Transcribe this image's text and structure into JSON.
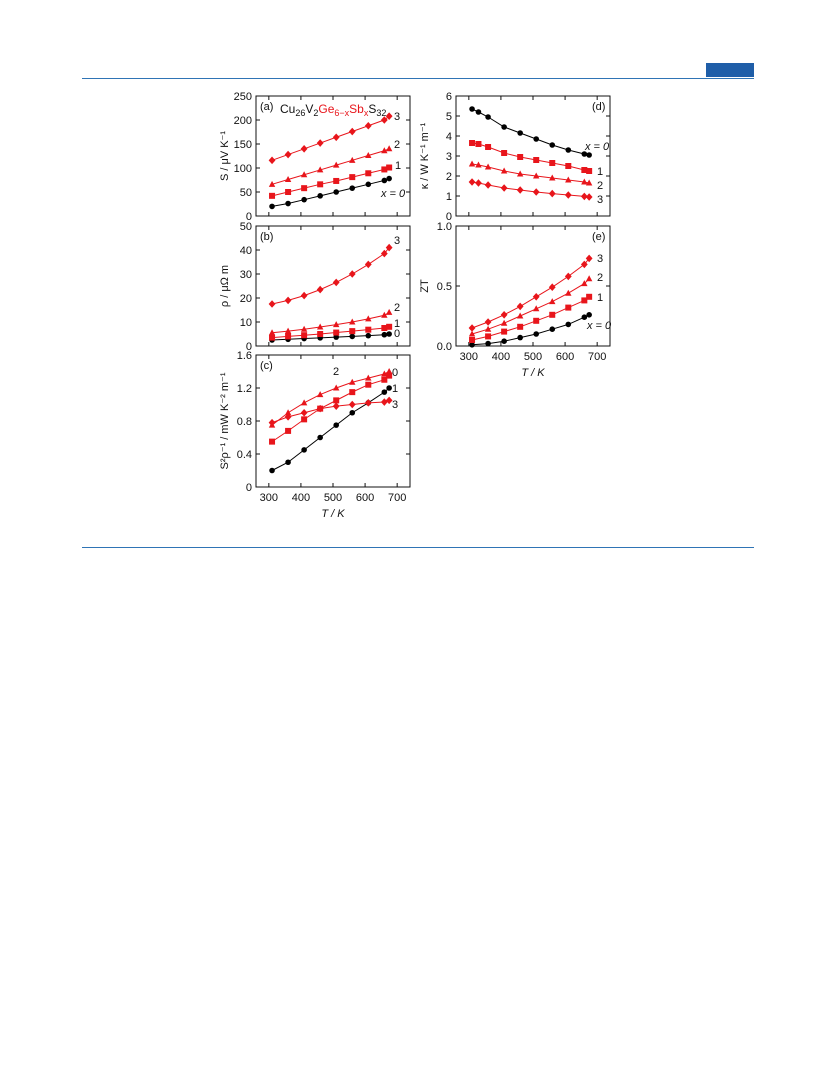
{
  "figure": {
    "compound_parts": {
      "cu": "Cu",
      "cu_sub": "26",
      "v": "V",
      "v_sub": "2",
      "ge": "Ge",
      "ge_sub": "6−x",
      "sb": "Sb",
      "sb_sub": "x",
      "s": "S",
      "s_sub": "32"
    },
    "colors": {
      "x0": "#000000",
      "doped": "#e8151b",
      "rule": "#2f74b5",
      "tab": "#1f5ea8"
    }
  },
  "chart_data": [
    {
      "type": "line",
      "panel": "(a)",
      "ylabel": "S / μV K⁻¹",
      "xlabel": "",
      "xlim": [
        260,
        740
      ],
      "ylim": [
        0,
        250
      ],
      "yticks": [
        0,
        50,
        100,
        150,
        200,
        250
      ],
      "xticks": [
        300,
        400,
        500,
        600,
        700
      ],
      "series": [
        {
          "name": "x = 0",
          "marker": "circle",
          "color": "#000000",
          "x": [
            310,
            360,
            410,
            460,
            510,
            560,
            610,
            660,
            675
          ],
          "y": [
            20,
            26,
            34,
            42,
            50,
            58,
            66,
            74,
            78
          ]
        },
        {
          "name": "1",
          "marker": "square",
          "color": "#e8151b",
          "x": [
            310,
            360,
            410,
            460,
            510,
            560,
            610,
            660,
            675
          ],
          "y": [
            42,
            50,
            58,
            66,
            73,
            81,
            89,
            97,
            101
          ]
        },
        {
          "name": "2",
          "marker": "triangle",
          "color": "#e8151b",
          "x": [
            310,
            360,
            410,
            460,
            510,
            560,
            610,
            660,
            675
          ],
          "y": [
            66,
            76,
            86,
            96,
            106,
            116,
            126,
            136,
            140
          ]
        },
        {
          "name": "3",
          "marker": "diamond",
          "color": "#e8151b",
          "x": [
            310,
            360,
            410,
            460,
            510,
            560,
            610,
            660,
            675
          ],
          "y": [
            116,
            128,
            140,
            152,
            164,
            176,
            188,
            200,
            208
          ]
        }
      ]
    },
    {
      "type": "line",
      "panel": "(b)",
      "ylabel": "ρ / μΩ m",
      "xlabel": "",
      "xlim": [
        260,
        740
      ],
      "ylim": [
        0,
        50
      ],
      "yticks": [
        0,
        10,
        20,
        30,
        40,
        50
      ],
      "xticks": [
        300,
        400,
        500,
        600,
        700
      ],
      "series": [
        {
          "name": "0",
          "marker": "circle",
          "color": "#000000",
          "x": [
            310,
            360,
            410,
            460,
            510,
            560,
            610,
            660,
            675
          ],
          "y": [
            2.5,
            2.8,
            3.1,
            3.4,
            3.7,
            4.0,
            4.3,
            4.7,
            5.0
          ]
        },
        {
          "name": "1",
          "marker": "square",
          "color": "#e8151b",
          "x": [
            310,
            360,
            410,
            460,
            510,
            560,
            610,
            660,
            675
          ],
          "y": [
            3.5,
            4.0,
            4.5,
            5.0,
            5.6,
            6.2,
            6.8,
            7.5,
            8.0
          ]
        },
        {
          "name": "2",
          "marker": "triangle",
          "color": "#e8151b",
          "x": [
            310,
            360,
            410,
            460,
            510,
            560,
            610,
            660,
            675
          ],
          "y": [
            5.5,
            6.2,
            7.0,
            7.9,
            8.9,
            10.0,
            11.3,
            12.8,
            14.0
          ]
        },
        {
          "name": "3",
          "marker": "diamond",
          "color": "#e8151b",
          "x": [
            310,
            360,
            410,
            460,
            510,
            560,
            610,
            660,
            675
          ],
          "y": [
            17.5,
            19.0,
            21.0,
            23.5,
            26.5,
            30.0,
            34.0,
            38.5,
            41.0
          ]
        }
      ]
    },
    {
      "type": "line",
      "panel": "(c)",
      "ylabel": "S²ρ⁻¹ / mW K⁻² m⁻¹",
      "xlabel": "T / K",
      "xlim": [
        260,
        740
      ],
      "ylim": [
        0,
        1.6
      ],
      "yticks": [
        0.0,
        0.4,
        0.8,
        1.2,
        1.6
      ],
      "ytick_labels": [
        "0",
        "0.4",
        "0.8",
        "1.2",
        "1.6"
      ],
      "xticks": [
        300,
        400,
        500,
        600,
        700
      ],
      "series": [
        {
          "name": "0",
          "marker": "circle",
          "color": "#000000",
          "x": [
            310,
            360,
            410,
            460,
            510,
            560,
            610,
            660,
            675
          ],
          "y": [
            0.2,
            0.3,
            0.45,
            0.6,
            0.75,
            0.9,
            1.02,
            1.15,
            1.2
          ]
        },
        {
          "name": "1",
          "marker": "square",
          "color": "#e8151b",
          "x": [
            310,
            360,
            410,
            460,
            510,
            560,
            610,
            660,
            675
          ],
          "y": [
            0.55,
            0.68,
            0.82,
            0.95,
            1.05,
            1.15,
            1.24,
            1.3,
            1.35
          ]
        },
        {
          "name": "2",
          "marker": "triangle",
          "color": "#e8151b",
          "x": [
            310,
            360,
            410,
            460,
            510,
            560,
            610,
            660,
            675
          ],
          "y": [
            0.75,
            0.9,
            1.02,
            1.12,
            1.2,
            1.27,
            1.32,
            1.37,
            1.4
          ]
        },
        {
          "name": "3",
          "marker": "diamond",
          "color": "#e8151b",
          "x": [
            310,
            360,
            410,
            460,
            510,
            560,
            610,
            660,
            675
          ],
          "y": [
            0.78,
            0.85,
            0.9,
            0.95,
            0.98,
            1.0,
            1.02,
            1.03,
            1.05
          ]
        }
      ],
      "series_labels": [
        "1",
        "0",
        "3",
        "2"
      ]
    },
    {
      "type": "line",
      "panel": "(d)",
      "ylabel": "κ / W K⁻¹ m⁻¹",
      "xlabel": "",
      "xlim": [
        260,
        740
      ],
      "ylim": [
        0,
        6
      ],
      "yticks": [
        0,
        1,
        2,
        3,
        4,
        5,
        6
      ],
      "xticks": [
        300,
        400,
        500,
        600,
        700
      ],
      "series": [
        {
          "name": "x = 0",
          "marker": "circle",
          "color": "#000000",
          "x": [
            310,
            330,
            360,
            410,
            460,
            510,
            560,
            610,
            660,
            675
          ],
          "y": [
            5.35,
            5.2,
            4.95,
            4.45,
            4.15,
            3.85,
            3.55,
            3.3,
            3.1,
            3.05
          ]
        },
        {
          "name": "1",
          "marker": "square",
          "color": "#e8151b",
          "x": [
            310,
            330,
            360,
            410,
            460,
            510,
            560,
            610,
            660,
            675
          ],
          "y": [
            3.65,
            3.6,
            3.45,
            3.15,
            2.95,
            2.8,
            2.65,
            2.5,
            2.3,
            2.25
          ]
        },
        {
          "name": "2",
          "marker": "triangle",
          "color": "#e8151b",
          "x": [
            310,
            330,
            360,
            410,
            460,
            510,
            560,
            610,
            660,
            675
          ],
          "y": [
            2.6,
            2.55,
            2.45,
            2.25,
            2.1,
            2.0,
            1.9,
            1.8,
            1.7,
            1.65
          ]
        },
        {
          "name": "3",
          "marker": "diamond",
          "color": "#e8151b",
          "x": [
            310,
            330,
            360,
            410,
            460,
            510,
            560,
            610,
            660,
            675
          ],
          "y": [
            1.7,
            1.65,
            1.55,
            1.4,
            1.3,
            1.2,
            1.12,
            1.05,
            0.98,
            0.95
          ]
        }
      ]
    },
    {
      "type": "line",
      "panel": "(e)",
      "ylabel": "ZT",
      "xlabel": "T / K",
      "xlim": [
        260,
        740
      ],
      "ylim": [
        0,
        1.0
      ],
      "yticks": [
        0.0,
        0.5,
        1.0
      ],
      "ytick_labels": [
        "0.0",
        "0.5",
        "1.0"
      ],
      "xticks": [
        300,
        400,
        500,
        600,
        700
      ],
      "series": [
        {
          "name": "x = 0",
          "marker": "circle",
          "color": "#000000",
          "x": [
            310,
            360,
            410,
            460,
            510,
            560,
            610,
            660,
            675
          ],
          "y": [
            0.01,
            0.02,
            0.04,
            0.07,
            0.1,
            0.14,
            0.18,
            0.24,
            0.26
          ]
        },
        {
          "name": "1",
          "marker": "square",
          "color": "#e8151b",
          "x": [
            310,
            360,
            410,
            460,
            510,
            560,
            610,
            660,
            675
          ],
          "y": [
            0.05,
            0.08,
            0.12,
            0.16,
            0.21,
            0.26,
            0.32,
            0.38,
            0.41
          ]
        },
        {
          "name": "2",
          "marker": "triangle",
          "color": "#e8151b",
          "x": [
            310,
            360,
            410,
            460,
            510,
            560,
            610,
            660,
            675
          ],
          "y": [
            0.1,
            0.14,
            0.19,
            0.25,
            0.31,
            0.37,
            0.44,
            0.52,
            0.56
          ]
        },
        {
          "name": "3",
          "marker": "diamond",
          "color": "#e8151b",
          "x": [
            310,
            360,
            410,
            460,
            510,
            560,
            610,
            660,
            675
          ],
          "y": [
            0.15,
            0.2,
            0.26,
            0.33,
            0.41,
            0.49,
            0.58,
            0.68,
            0.73
          ]
        }
      ]
    }
  ]
}
